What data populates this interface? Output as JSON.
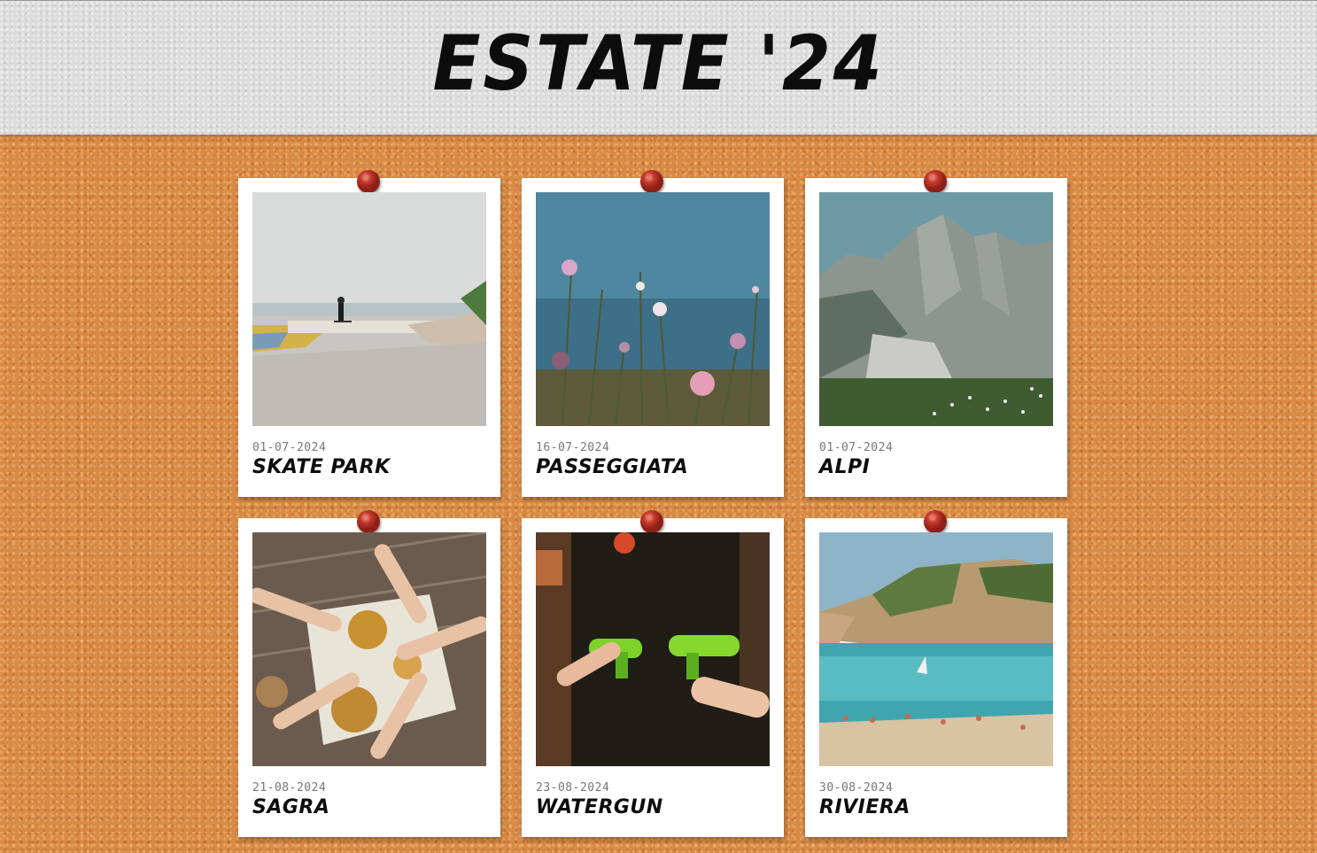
{
  "header": {
    "title": "ESTATE '24"
  },
  "colors": {
    "cork": "#d98a45",
    "header": "#dcdcdc",
    "pin": "#c4392c",
    "card": "#ffffff"
  },
  "cards": [
    {
      "date": "01-07-2024",
      "label": "SKATE PARK",
      "image": "skate-park-photo"
    },
    {
      "date": "16-07-2024",
      "label": "PASSEGGIATA",
      "image": "wildflowers-photo"
    },
    {
      "date": "01-07-2024",
      "label": "ALPI",
      "image": "mountains-photo"
    },
    {
      "date": "21-08-2024",
      "label": "SAGRA",
      "image": "shared-food-photo"
    },
    {
      "date": "23-08-2024",
      "label": "WATERGUN",
      "image": "water-guns-photo"
    },
    {
      "date": "30-08-2024",
      "label": "RIVIERA",
      "image": "beach-cove-photo"
    }
  ]
}
